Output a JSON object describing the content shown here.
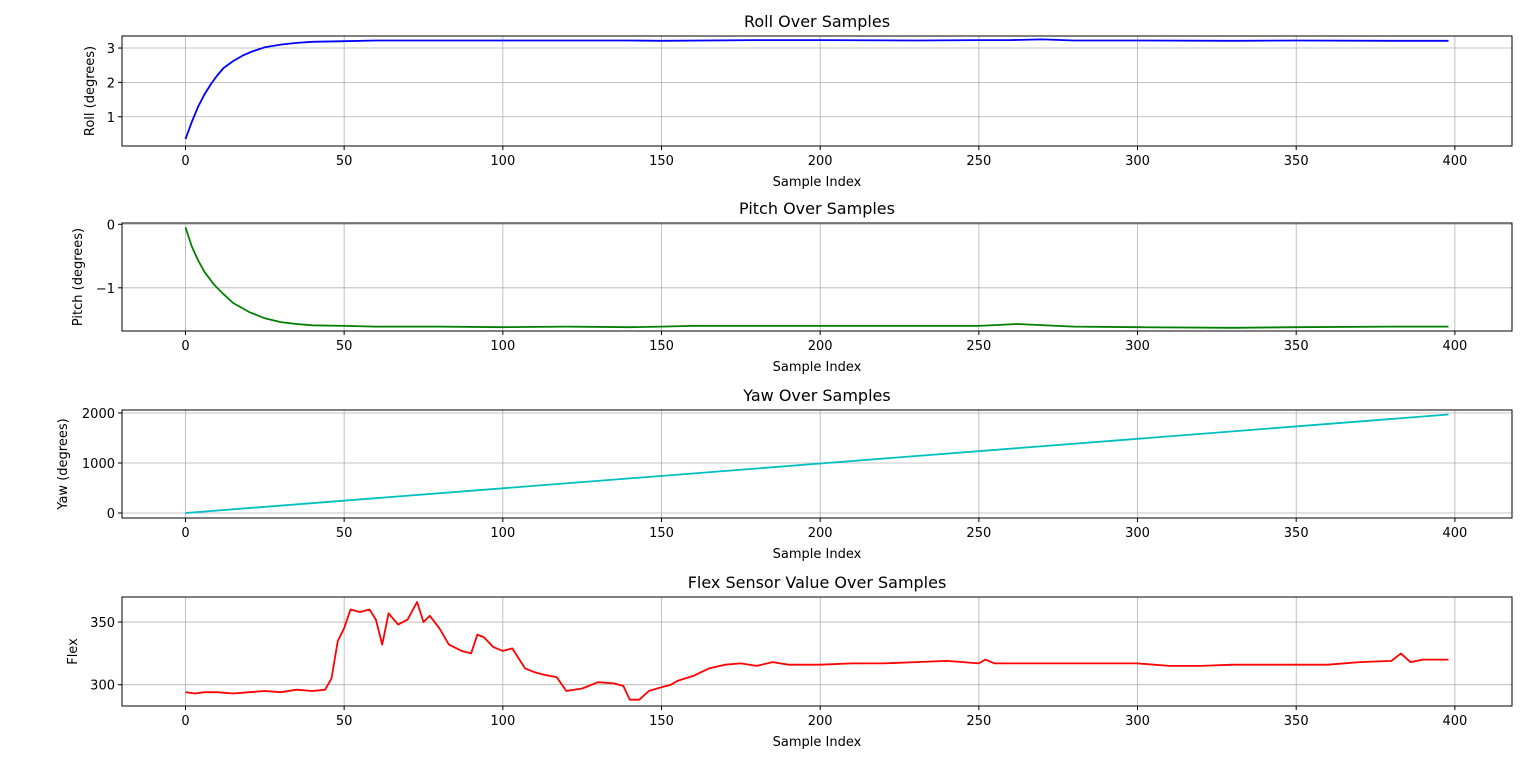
{
  "chart_data": [
    {
      "type": "line",
      "title": "Roll Over Samples",
      "xlabel": "Sample Index",
      "ylabel": "Roll (degrees)",
      "xlim": [
        -20,
        418
      ],
      "ylim": [
        0.15,
        3.35
      ],
      "xticks": [
        0,
        50,
        100,
        150,
        200,
        250,
        300,
        350,
        400
      ],
      "xtick_labels": [
        "0",
        "50",
        "100",
        "150",
        "200",
        "250",
        "300",
        "350",
        "400"
      ],
      "yticks": [
        1,
        2,
        3
      ],
      "ytick_labels": [
        "1",
        "2",
        "3"
      ],
      "grid": true,
      "color": "#0000ff",
      "x": [
        0,
        2,
        4,
        6,
        8,
        10,
        12,
        15,
        18,
        21,
        25,
        30,
        35,
        40,
        50,
        60,
        80,
        100,
        120,
        140,
        150,
        180,
        200,
        230,
        250,
        260,
        270,
        280,
        300,
        330,
        350,
        380,
        398
      ],
      "y": [
        0.35,
        0.85,
        1.3,
        1.65,
        1.95,
        2.2,
        2.42,
        2.62,
        2.78,
        2.9,
        3.02,
        3.1,
        3.15,
        3.18,
        3.2,
        3.22,
        3.22,
        3.22,
        3.22,
        3.22,
        3.21,
        3.23,
        3.23,
        3.22,
        3.23,
        3.23,
        3.25,
        3.22,
        3.22,
        3.21,
        3.22,
        3.21,
        3.21
      ]
    },
    {
      "type": "line",
      "title": "Pitch Over Samples",
      "xlabel": "Sample Index",
      "ylabel": "Pitch (degrees)",
      "xlim": [
        -20,
        418
      ],
      "ylim": [
        -1.68,
        0.02
      ],
      "xticks": [
        0,
        50,
        100,
        150,
        200,
        250,
        300,
        350,
        400
      ],
      "xtick_labels": [
        "0",
        "50",
        "100",
        "150",
        "200",
        "250",
        "300",
        "350",
        "400"
      ],
      "yticks": [
        0,
        -1
      ],
      "ytick_labels": [
        "0",
        "−1"
      ],
      "grid": true,
      "color": "#008000",
      "x": [
        0,
        2,
        4,
        6,
        9,
        12,
        15,
        20,
        25,
        30,
        35,
        40,
        50,
        60,
        80,
        100,
        120,
        140,
        150,
        160,
        180,
        200,
        220,
        250,
        262,
        280,
        300,
        330,
        350,
        380,
        398
      ],
      "y": [
        -0.05,
        -0.35,
        -0.57,
        -0.75,
        -0.95,
        -1.1,
        -1.24,
        -1.38,
        -1.48,
        -1.54,
        -1.57,
        -1.59,
        -1.6,
        -1.61,
        -1.61,
        -1.62,
        -1.61,
        -1.62,
        -1.61,
        -1.6,
        -1.6,
        -1.6,
        -1.6,
        -1.6,
        -1.57,
        -1.61,
        -1.62,
        -1.63,
        -1.62,
        -1.61,
        -1.61
      ]
    },
    {
      "type": "line",
      "title": "Yaw Over Samples",
      "xlabel": "Sample Index",
      "ylabel": "Yaw (degrees)",
      "xlim": [
        -20,
        418
      ],
      "ylim": [
        -100,
        2060
      ],
      "xticks": [
        0,
        50,
        100,
        150,
        200,
        250,
        300,
        350,
        400
      ],
      "xtick_labels": [
        "0",
        "50",
        "100",
        "150",
        "200",
        "250",
        "300",
        "350",
        "400"
      ],
      "yticks": [
        0,
        1000,
        2000
      ],
      "ytick_labels": [
        "0",
        "1000",
        "2000"
      ],
      "grid": true,
      "color": "#00bfbf",
      "x": [
        0,
        100,
        200,
        300,
        398
      ],
      "y": [
        0,
        495,
        990,
        1485,
        1970
      ]
    },
    {
      "type": "line",
      "title": "Flex Sensor Value Over Samples",
      "xlabel": "Sample Index",
      "ylabel": "Flex",
      "xlim": [
        -20,
        418
      ],
      "ylim": [
        283,
        370
      ],
      "xticks": [
        0,
        50,
        100,
        150,
        200,
        250,
        300,
        350,
        400
      ],
      "xtick_labels": [
        "0",
        "50",
        "100",
        "150",
        "200",
        "250",
        "300",
        "350",
        "400"
      ],
      "yticks": [
        300,
        350
      ],
      "ytick_labels": [
        "300",
        "350"
      ],
      "grid": true,
      "color": "#ff0000",
      "x": [
        0,
        3,
        6,
        10,
        15,
        20,
        25,
        30,
        35,
        40,
        44,
        46,
        48,
        50,
        52,
        55,
        58,
        60,
        62,
        64,
        67,
        70,
        73,
        75,
        77,
        80,
        83,
        87,
        90,
        92,
        94,
        97,
        100,
        103,
        107,
        110,
        113,
        117,
        120,
        125,
        130,
        135,
        138,
        140,
        143,
        146,
        150,
        153,
        155,
        160,
        165,
        170,
        175,
        180,
        185,
        190,
        200,
        210,
        220,
        230,
        240,
        245,
        250,
        252,
        255,
        270,
        300,
        310,
        320,
        330,
        340,
        350,
        360,
        370,
        380,
        383,
        386,
        390,
        394,
        398
      ],
      "y": [
        294,
        293,
        294,
        294,
        293,
        294,
        295,
        294,
        296,
        295,
        296,
        305,
        335,
        345,
        360,
        358,
        360,
        352,
        332,
        357,
        348,
        352,
        366,
        350,
        355,
        345,
        332,
        327,
        325,
        340,
        338,
        330,
        327,
        329,
        313,
        310,
        308,
        306,
        295,
        297,
        302,
        301,
        299,
        288,
        288,
        295,
        298,
        300,
        303,
        307,
        313,
        316,
        317,
        315,
        318,
        316,
        316,
        317,
        317,
        318,
        319,
        318,
        317,
        320,
        317,
        317,
        317,
        315,
        315,
        316,
        316,
        316,
        316,
        318,
        319,
        325,
        318,
        320,
        320,
        320
      ]
    }
  ]
}
